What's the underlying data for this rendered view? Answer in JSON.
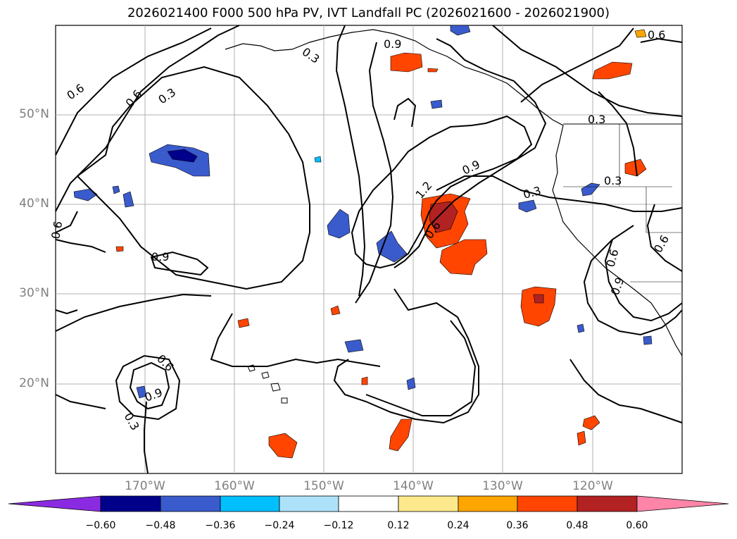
{
  "title": "2026021400 F000 500 hPa PV, IVT Landfall PC (2026021600 - 2026021900)",
  "lat_labels": [
    "50°N",
    "40°N",
    "30°N",
    "20°N"
  ],
  "lon_labels": [
    "170°W",
    "160°W",
    "150°W",
    "140°W",
    "130°W",
    "120°W"
  ],
  "contour_labels": [
    "0.6",
    "0.6",
    "0.3",
    "0.3",
    "0.9",
    "0.6",
    "0.6",
    "1.2",
    "0.9",
    "0.3",
    "0.3",
    "0.6",
    "0.6",
    "0.9",
    "0.9",
    "0.6",
    "0.9",
    "0.3",
    "0.3",
    "0.6"
  ],
  "colorbar": {
    "ticks": [
      "−0.60",
      "−0.48",
      "−0.36",
      "−0.24",
      "−0.12",
      "0.12",
      "0.24",
      "0.36",
      "0.48",
      "0.60"
    ],
    "colors": [
      "#8a2be2",
      "#00008b",
      "#3a5bcc",
      "#00bfff",
      "#aee2fb",
      "#ffffff",
      "#fde98c",
      "#ffa500",
      "#ff4500",
      "#b22222",
      "#ff85a8"
    ]
  },
  "colors": {
    "positive_dark": "#b22222",
    "positive": "#ff4500",
    "negative_dark": "#00008b",
    "negative": "#3a5bcc"
  }
}
